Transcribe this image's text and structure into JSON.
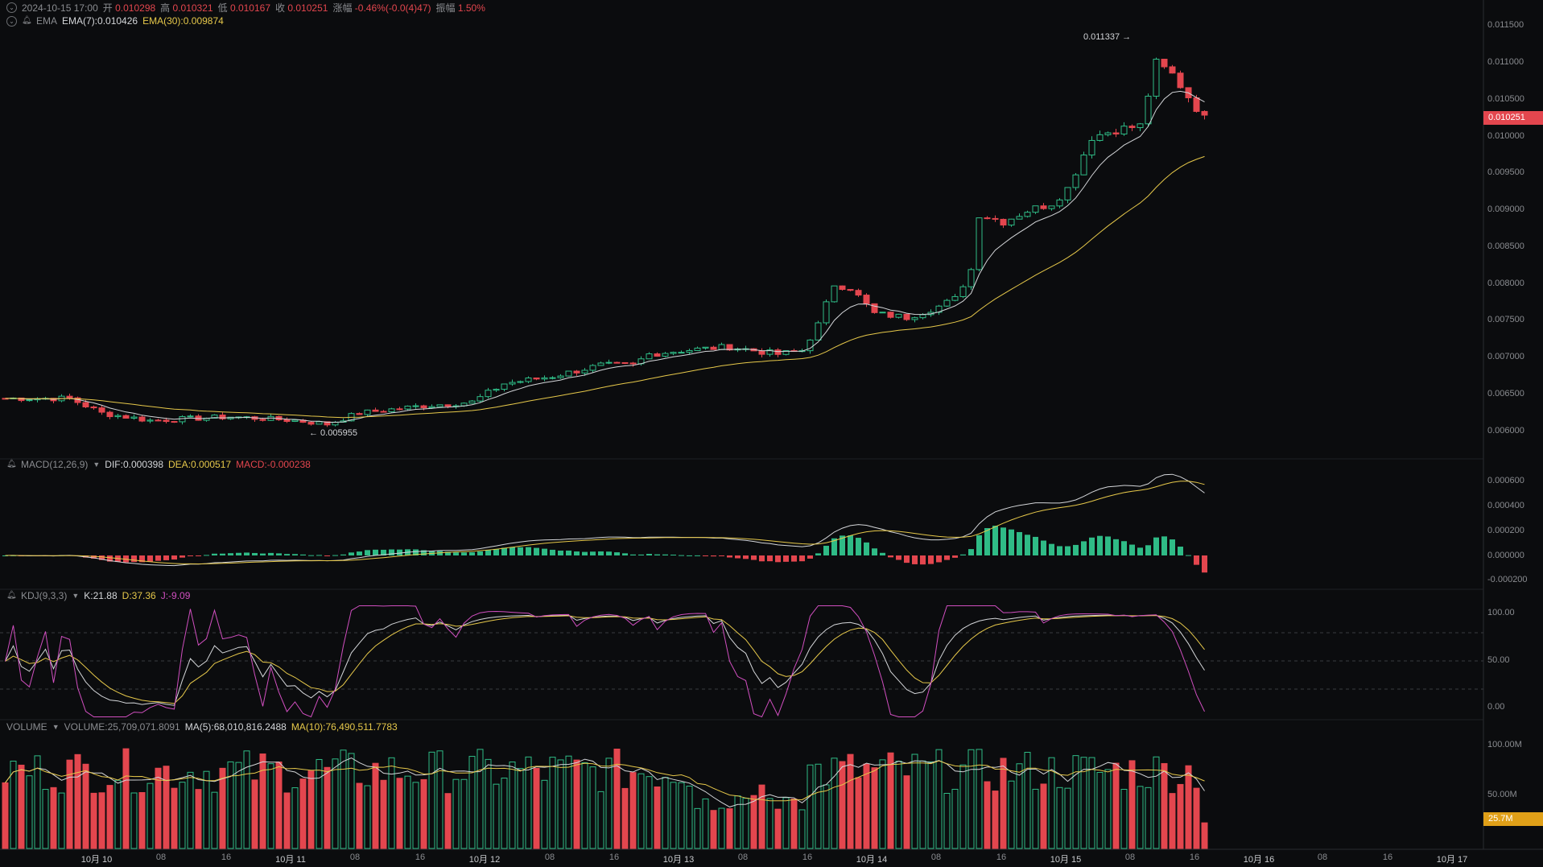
{
  "ohlc": {
    "datetime": "2024-10-15 17:00",
    "open_label": "开",
    "open": "0.010298",
    "high_label": "高",
    "high": "0.010321",
    "low_label": "低",
    "low": "0.010167",
    "close_label": "收",
    "close": "0.010251",
    "change_label": "涨幅",
    "change": "-0.46%(-0.0(4)47)",
    "amplitude_label": "振幅",
    "amplitude": "1.50%"
  },
  "ema": {
    "name": "EMA",
    "ema7": "EMA(7):0.010426",
    "ema30": "EMA(30):0.009874"
  },
  "macd": {
    "name": "MACD(12,26,9)",
    "dif": "DIF:0.000398",
    "dea": "DEA:0.000517",
    "macd": "MACD:-0.000238"
  },
  "kdj": {
    "name": "KDJ(9,3,3)",
    "k": "K:21.88",
    "d": "D:37.36",
    "j": "J:-9.09"
  },
  "volume": {
    "name": "VOLUME",
    "vol": "VOLUME:25,709,071.8091",
    "ma5": "MA(5):68,010,816.2488",
    "ma10": "MA(10):76,490,511.7783"
  },
  "annotations": {
    "high": "0.011337 →",
    "low": "← 0.005955"
  },
  "price_axis": [
    "0.011500",
    "0.011000",
    "0.010500",
    "0.010000",
    "0.009500",
    "0.009000",
    "0.008500",
    "0.008000",
    "0.007500",
    "0.007000",
    "0.006500",
    "0.006000"
  ],
  "price_tag": "0.010251",
  "macd_axis": [
    "0.000600",
    "0.000400",
    "0.000200",
    "0.000000",
    "-0.000200"
  ],
  "kdj_axis": [
    "100.00",
    "50.00",
    "0.00"
  ],
  "vol_axis": [
    "100.00M",
    "50.00M"
  ],
  "vol_tag": "25.7M",
  "time_axis": [
    "10月 10",
    "08",
    "16",
    "10月 11",
    "08",
    "16",
    "10月 12",
    "08",
    "16",
    "10月 13",
    "08",
    "16",
    "10月 14",
    "08",
    "16",
    "10月 15",
    "08",
    "16",
    "10月 16",
    "08",
    "16",
    "10月 17"
  ],
  "colors": {
    "up": "#2fbb86",
    "down": "#e3464e",
    "ema7": "#d4d6d9",
    "ema30": "#e6c84a",
    "kdj_j": "#d14fc0",
    "vol_tag": "#e0a018"
  }
}
